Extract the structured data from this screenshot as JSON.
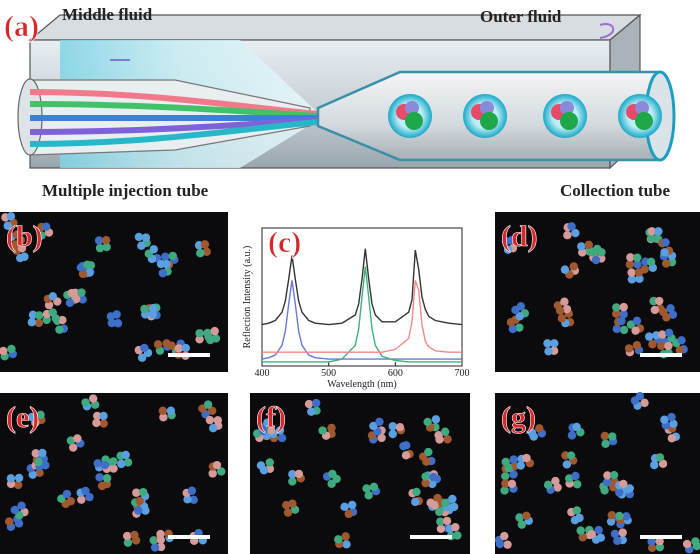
{
  "figure": {
    "labels": [
      "(a)",
      "(b)",
      "(c)",
      "(d)",
      "(e)",
      "(f)",
      "(g)"
    ],
    "annotations": [
      "Middle fluid",
      "Outer fluid",
      "Multiple injection tube",
      "Collection tube"
    ]
  },
  "chart_data": {
    "type": "line",
    "xlabel": "Wavelength (nm)",
    "ylabel": "Reflection Intensity (a.u.)",
    "x": [
      400,
      410,
      420,
      430,
      435,
      440,
      445,
      450,
      455,
      460,
      470,
      480,
      500,
      520,
      540,
      545,
      550,
      555,
      560,
      565,
      570,
      580,
      600,
      620,
      625,
      630,
      635,
      640,
      645,
      650,
      660,
      680,
      700
    ],
    "series": [
      {
        "color": "#333333",
        "values": [
          0.3,
          0.31,
          0.33,
          0.39,
          0.47,
          0.63,
          0.8,
          0.63,
          0.47,
          0.39,
          0.33,
          0.31,
          0.3,
          0.31,
          0.37,
          0.45,
          0.63,
          0.85,
          0.63,
          0.45,
          0.37,
          0.32,
          0.32,
          0.39,
          0.48,
          0.84,
          0.7,
          0.5,
          0.41,
          0.36,
          0.33,
          0.31,
          0.3
        ]
      },
      {
        "color": "#6a78d8",
        "values": [
          0.05,
          0.06,
          0.08,
          0.15,
          0.25,
          0.45,
          0.62,
          0.45,
          0.25,
          0.15,
          0.08,
          0.06,
          0.05,
          0.05,
          0.05,
          0.05,
          0.05,
          0.05,
          0.05,
          0.05,
          0.05,
          0.05,
          0.05,
          0.05,
          0.05,
          0.05,
          0.05,
          0.05,
          0.05,
          0.05,
          0.05,
          0.05,
          0.05
        ]
      },
      {
        "color": "#3fb07a",
        "values": [
          0.03,
          0.03,
          0.03,
          0.03,
          0.03,
          0.03,
          0.03,
          0.03,
          0.03,
          0.03,
          0.03,
          0.03,
          0.03,
          0.05,
          0.15,
          0.27,
          0.5,
          0.72,
          0.5,
          0.27,
          0.15,
          0.07,
          0.04,
          0.03,
          0.03,
          0.03,
          0.03,
          0.03,
          0.03,
          0.03,
          0.03,
          0.03,
          0.03
        ]
      },
      {
        "color": "#f08a8a",
        "values": [
          0.1,
          0.1,
          0.1,
          0.1,
          0.1,
          0.1,
          0.1,
          0.1,
          0.1,
          0.1,
          0.1,
          0.1,
          0.1,
          0.1,
          0.1,
          0.1,
          0.1,
          0.1,
          0.1,
          0.1,
          0.1,
          0.1,
          0.12,
          0.2,
          0.32,
          0.62,
          0.55,
          0.3,
          0.18,
          0.14,
          0.11,
          0.1,
          0.1
        ]
      }
    ],
    "xlim": [
      400,
      700
    ],
    "xticks": [
      400,
      500,
      600,
      700
    ],
    "ylim": [
      0,
      1
    ]
  }
}
